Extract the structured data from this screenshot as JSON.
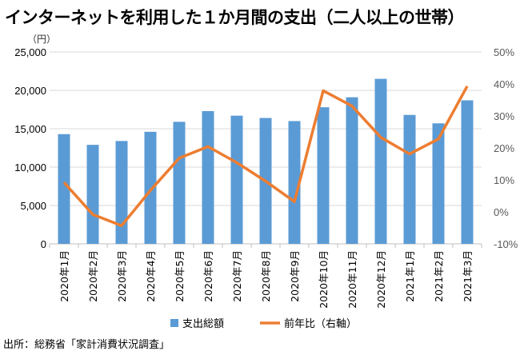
{
  "title": "インターネットを利用した１か月間の支出（二人以上の世帯）",
  "unit_label": "（円）",
  "source": "出所：総務省「家計消費状況調査」",
  "chart_data": {
    "type": "bar+line",
    "categories": [
      "2020年1月",
      "2020年2月",
      "2020年3月",
      "2020年4月",
      "2020年5月",
      "2020年6月",
      "2020年7月",
      "2020年8月",
      "2020年9月",
      "2020年10月",
      "2020年11月",
      "2020年12月",
      "2021年1月",
      "2021年2月",
      "2021年3月"
    ],
    "series": [
      {
        "name": "支出総額",
        "type": "bar",
        "axis": "left",
        "color": "#5b9bd5",
        "values": [
          14300,
          12900,
          13400,
          14600,
          15900,
          17300,
          16700,
          16400,
          16000,
          17800,
          19100,
          21500,
          16800,
          15700,
          18700
        ]
      },
      {
        "name": "前年比（右軸）",
        "type": "line",
        "axis": "right",
        "color": "#ed7d31",
        "values": [
          9.2,
          -0.8,
          -4.3,
          6.7,
          16.8,
          20.4,
          15.4,
          9.6,
          3.2,
          37.9,
          33.1,
          23.3,
          18.1,
          22.8,
          39.3
        ]
      }
    ],
    "left_axis": {
      "min": 0,
      "max": 25000,
      "ticks": [
        "0",
        "5,000",
        "10,000",
        "15,000",
        "20,000",
        "25,000"
      ]
    },
    "right_axis": {
      "min": -10,
      "max": 50,
      "ticks": [
        "-10%",
        "0%",
        "10%",
        "20%",
        "30%",
        "40%",
        "50%"
      ]
    },
    "grid": true,
    "legend_position": "bottom"
  }
}
